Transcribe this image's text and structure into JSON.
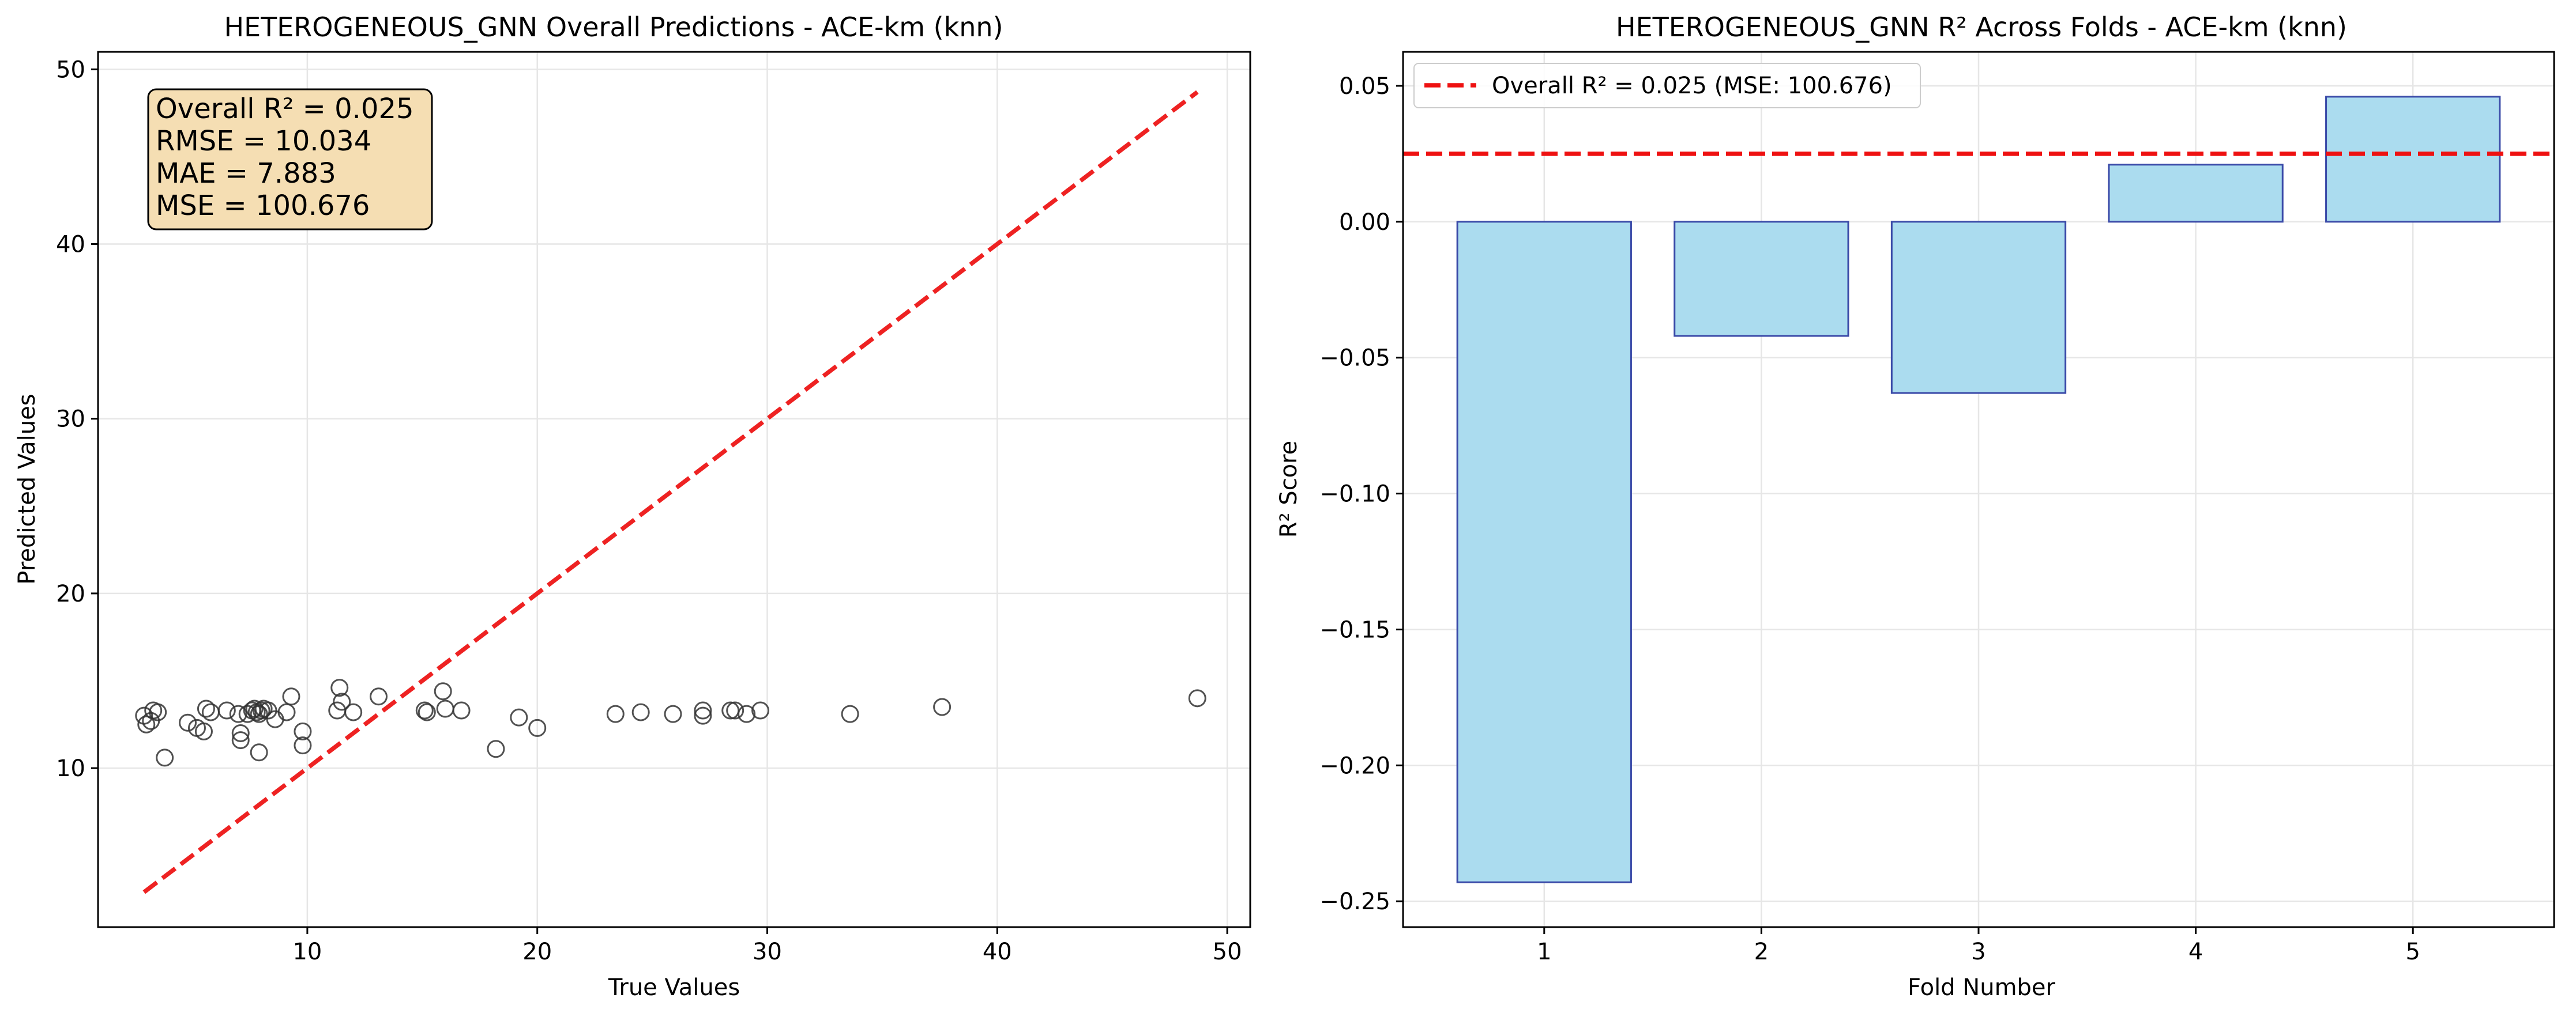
{
  "chart_data": [
    {
      "type": "scatter",
      "title": "HETEROGENEOUS_GNN Overall Predictions - ACE-km (knn)",
      "xlabel": "True Values",
      "ylabel": "Predicted Values",
      "xlim": [
        0.9,
        51.0
      ],
      "ylim": [
        0.9,
        51.0
      ],
      "xticks": [
        10,
        20,
        30,
        40,
        50
      ],
      "yticks": [
        10,
        20,
        30,
        40,
        50
      ],
      "grid": true,
      "stats_box": [
        "Overall R² = 0.025",
        "RMSE = 10.034",
        "MAE = 7.883",
        "MSE = 100.676"
      ],
      "identity_line": {
        "from": 2.9,
        "to": 48.7,
        "color": "#ee2222",
        "style": "dashed"
      },
      "marker_color": "#333333",
      "points": [
        [
          2.9,
          13.0
        ],
        [
          3.0,
          12.5
        ],
        [
          3.2,
          12.7
        ],
        [
          3.3,
          13.3
        ],
        [
          3.5,
          13.2
        ],
        [
          3.8,
          10.6
        ],
        [
          4.8,
          12.6
        ],
        [
          5.2,
          12.3
        ],
        [
          5.5,
          12.1
        ],
        [
          5.6,
          13.4
        ],
        [
          5.8,
          13.2
        ],
        [
          6.5,
          13.3
        ],
        [
          7.0,
          13.1
        ],
        [
          7.1,
          12.0
        ],
        [
          7.1,
          11.6
        ],
        [
          7.4,
          13.1
        ],
        [
          7.6,
          13.3
        ],
        [
          7.7,
          13.4
        ],
        [
          7.8,
          13.2
        ],
        [
          7.9,
          13.1
        ],
        [
          8.0,
          13.3
        ],
        [
          8.1,
          13.4
        ],
        [
          7.9,
          10.9
        ],
        [
          8.3,
          13.3
        ],
        [
          8.6,
          12.8
        ],
        [
          9.1,
          13.2
        ],
        [
          9.3,
          14.1
        ],
        [
          9.8,
          12.1
        ],
        [
          9.8,
          11.3
        ],
        [
          11.3,
          13.3
        ],
        [
          11.4,
          14.6
        ],
        [
          11.5,
          13.8
        ],
        [
          12.0,
          13.2
        ],
        [
          13.1,
          14.1
        ],
        [
          15.1,
          13.3
        ],
        [
          15.2,
          13.2
        ],
        [
          15.9,
          14.4
        ],
        [
          16.0,
          13.4
        ],
        [
          16.7,
          13.3
        ],
        [
          18.2,
          11.1
        ],
        [
          19.2,
          12.9
        ],
        [
          20.0,
          12.3
        ],
        [
          23.4,
          13.1
        ],
        [
          24.5,
          13.2
        ],
        [
          25.9,
          13.1
        ],
        [
          27.2,
          13.3
        ],
        [
          27.2,
          13.0
        ],
        [
          28.4,
          13.3
        ],
        [
          28.6,
          13.3
        ],
        [
          29.1,
          13.1
        ],
        [
          29.7,
          13.3
        ],
        [
          33.6,
          13.1
        ],
        [
          37.6,
          13.5
        ],
        [
          48.7,
          14.0
        ]
      ]
    },
    {
      "type": "bar",
      "title": "HETEROGENEOUS_GNN R² Across Folds - ACE-km (knn)",
      "xlabel": "Fold Number",
      "ylabel": "R² Score",
      "categories": [
        "1",
        "2",
        "3",
        "4",
        "5"
      ],
      "values": [
        -0.243,
        -0.042,
        -0.063,
        0.021,
        0.046
      ],
      "ylim": [
        -0.2595,
        0.0625
      ],
      "yticks": [
        0.05,
        0.0,
        -0.05,
        -0.1,
        -0.15,
        -0.2,
        -0.25
      ],
      "ytick_labels": [
        "0.05",
        "0.00",
        "−0.05",
        "−0.10",
        "−0.15",
        "−0.20",
        "−0.25"
      ],
      "grid": true,
      "bar_fill": "#abdcef",
      "bar_edge": "#3a4aa8",
      "reference_line": {
        "value": 0.025,
        "label": "Overall R² = 0.025 (MSE: 100.676)",
        "color": "#ee1111",
        "style": "dashed"
      },
      "legend_position": "upper-left"
    }
  ]
}
